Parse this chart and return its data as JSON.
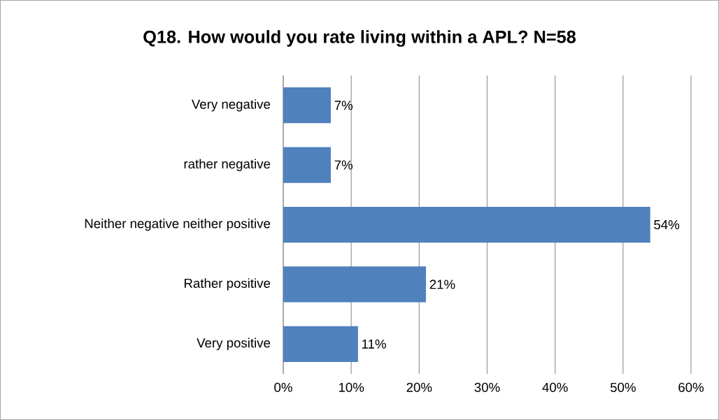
{
  "chart_data": {
    "type": "bar",
    "orientation": "horizontal",
    "title": "Q18. How would you rate living within a APL? N=58",
    "categories": [
      "Very negative",
      "rather negative",
      "Neither negative neither positive",
      "Rather positive",
      "Very positive"
    ],
    "values": [
      7,
      7,
      54,
      21,
      11
    ],
    "value_labels": [
      "7%",
      "7%",
      "54%",
      "21%",
      "11%"
    ],
    "color": "#4f81bd",
    "xlim": [
      0,
      60
    ],
    "xticks": [
      {
        "value": 0,
        "label": "0%"
      },
      {
        "value": 10,
        "label": "10%"
      },
      {
        "value": 20,
        "label": "20%"
      },
      {
        "value": 30,
        "label": "30%"
      },
      {
        "value": 40,
        "label": "40%"
      },
      {
        "value": 50,
        "label": "50%"
      },
      {
        "value": 60,
        "label": "60%"
      }
    ],
    "grid": "x"
  }
}
